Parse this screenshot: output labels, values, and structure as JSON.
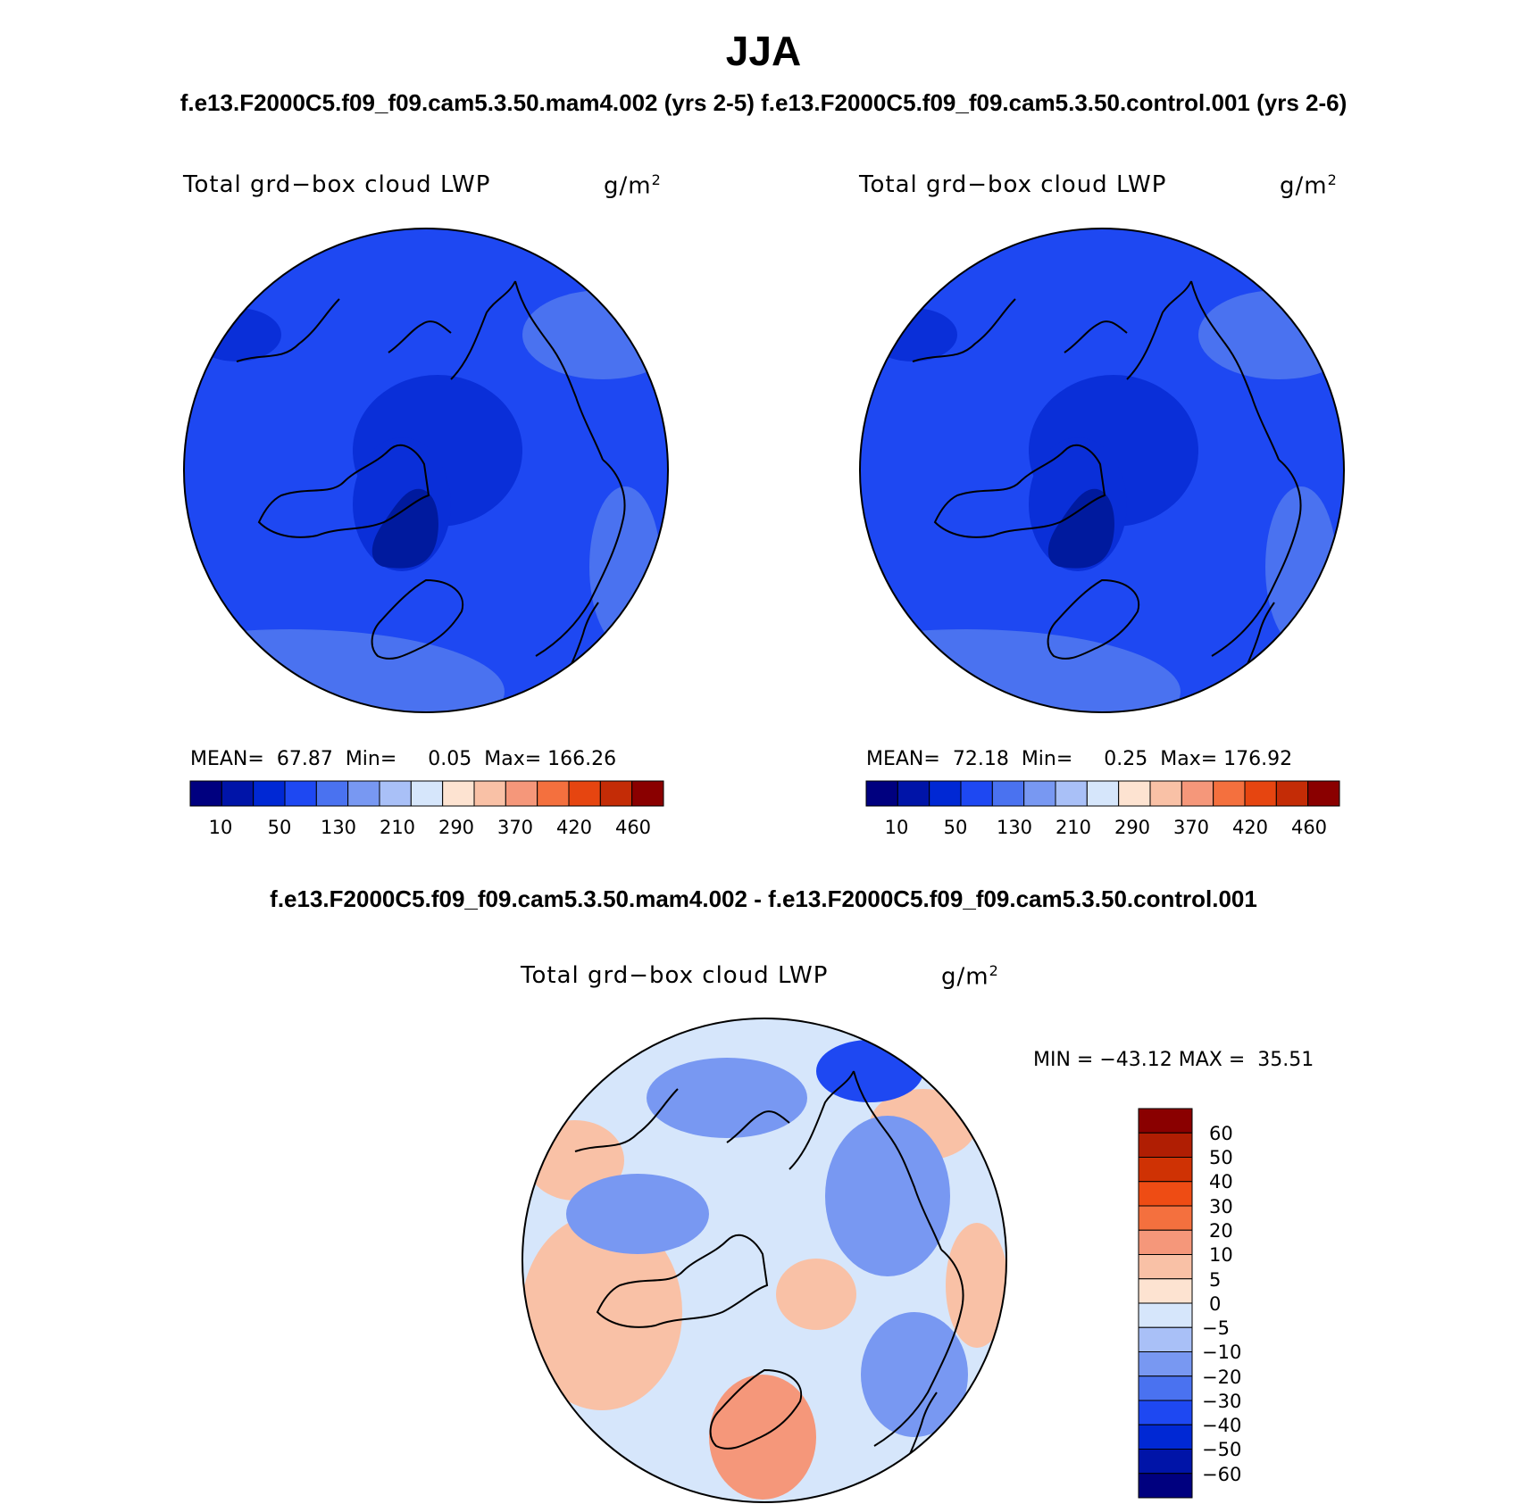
{
  "chart_data": {
    "type": "heatmap",
    "title": "JJA",
    "subtitle_top": "f.e13.F2000C5.f09_f09.cam5.3.50.mam4.002 (yrs 2-5) f.e13.F2000C5.f09_f09.cam5.3.50.control.001 (yrs 2-6)",
    "subtitle_diff": "f.e13.F2000C5.f09_f09.cam5.3.50.mam4.002 - f.e13.F2000C5.f09_f09.cam5.3.50.control.001",
    "projection": "north polar stereographic",
    "panels": [
      {
        "case": "mam4.002",
        "variable": "Total grd−box cloud LWP",
        "units": "g/m",
        "units_exp": "2",
        "mean_label": "MEAN=",
        "mean": "67.87",
        "min_label": "Min=",
        "min": "0.05",
        "max_label": "Max=",
        "max": "166.26",
        "colorbar_ticks": [
          "10",
          "50",
          "130",
          "210",
          "290",
          "370",
          "420",
          "460"
        ]
      },
      {
        "case": "control.001",
        "variable": "Total grd−box cloud LWP",
        "units": "g/m",
        "units_exp": "2",
        "mean_label": "MEAN=",
        "mean": "72.18",
        "min_label": "Min=",
        "min": "0.25",
        "max_label": "Max=",
        "max": "176.92",
        "colorbar_ticks": [
          "10",
          "50",
          "130",
          "210",
          "290",
          "370",
          "420",
          "460"
        ]
      },
      {
        "case": "difference",
        "variable": "Total grd−box cloud LWP",
        "units": "g/m",
        "units_exp": "2",
        "minmax_text": "MIN = −43.12 MAX =  35.51",
        "min": "-43.12",
        "max": "35.51",
        "colorbar_ticks": [
          "60",
          "50",
          "40",
          "30",
          "20",
          "10",
          "5",
          "0",
          "−5",
          "−10",
          "−20",
          "−30",
          "−40",
          "−50",
          "−60"
        ]
      }
    ],
    "colorbar_colors": [
      "#00007f",
      "#0014a8",
      "#0028d4",
      "#1e48f2",
      "#4a72f0",
      "#7898f2",
      "#a9c0f7",
      "#d6e6fb",
      "#fde3d1",
      "#f9c1a6",
      "#f5977a",
      "#f4703e",
      "#e64510",
      "#c42c06",
      "#8a0000"
    ],
    "field_colors": {
      "ocean": "#1e48f2",
      "arctic_low": "#0a2fd8",
      "greenland_low": "#001a9e",
      "storm_track": "#4a72f0",
      "diff_light_blue": "#d6e6fb",
      "diff_blue": "#7898f2",
      "diff_dark_blue": "#1e48f2",
      "diff_pos": "#f9c1a6",
      "diff_pos_strong": "#f5977a"
    }
  }
}
